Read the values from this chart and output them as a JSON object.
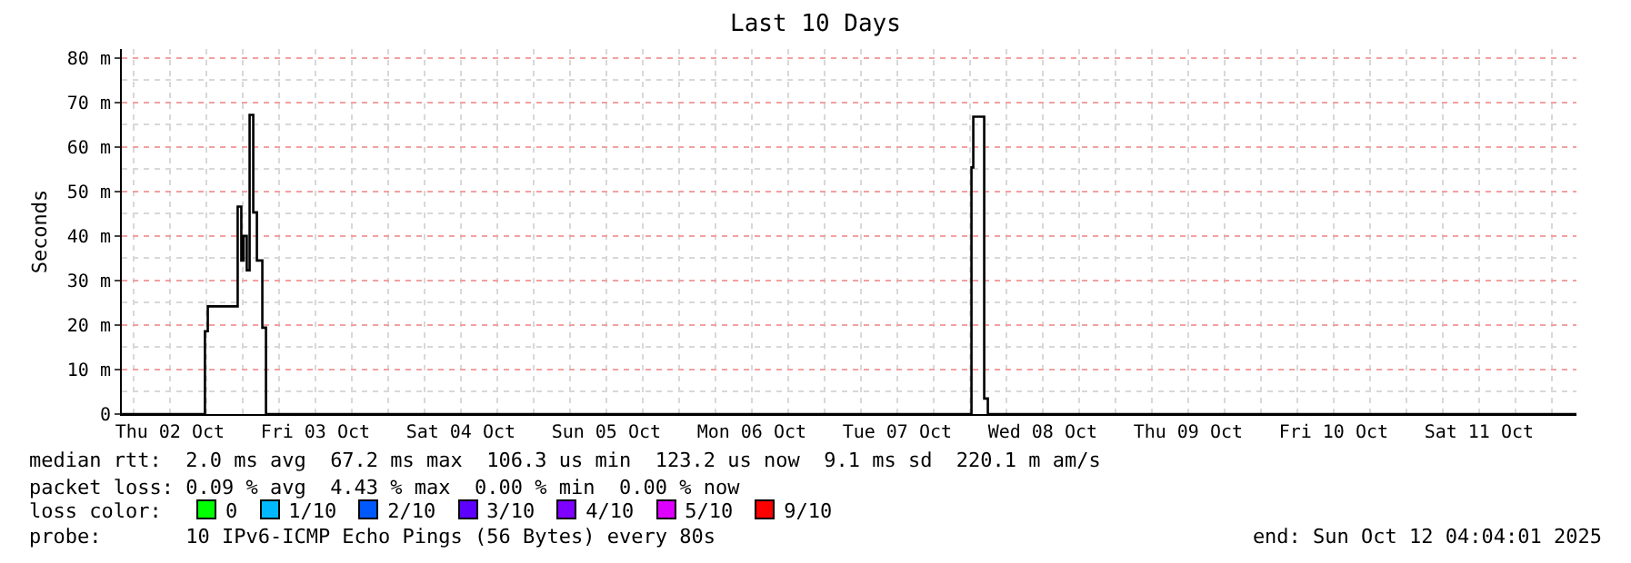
{
  "chart_data": {
    "type": "step",
    "title": "Last 10 Days",
    "ylabel": "Seconds",
    "x": [
      "2025-10-02T04:04",
      "2025-10-02T17:47",
      "2025-10-02T18:15",
      "2025-10-02T23:11",
      "2025-10-02T23:47",
      "2025-10-03T00:10",
      "2025-10-03T00:41",
      "2025-10-03T01:09",
      "2025-10-03T01:45",
      "2025-10-03T02:21",
      "2025-10-03T03:15",
      "2025-10-03T03:51",
      "2025-10-08T00:15",
      "2025-10-08T00:33",
      "2025-10-08T02:21",
      "2025-10-08T02:57",
      "2025-10-12T04:04"
    ],
    "series": [
      {
        "color": "#000000",
        "values": [
          0,
          18.6,
          24.2,
          46.6,
          34.5,
          40,
          32.3,
          67.2,
          45.3,
          34.5,
          19.4,
          0,
          55.4,
          66.8,
          3.5,
          0,
          0
        ]
      }
    ],
    "xlim": [
      "2025-10-02T04:04",
      "2025-10-12T04:04"
    ],
    "xticks": [
      {
        "value": "2025-10-02T12:00",
        "label": "Thu 02 Oct"
      },
      {
        "value": "2025-10-03T12:00",
        "label": "Fri 03 Oct"
      },
      {
        "value": "2025-10-04T12:00",
        "label": "Sat 04 Oct"
      },
      {
        "value": "2025-10-05T12:00",
        "label": "Sun 05 Oct"
      },
      {
        "value": "2025-10-06T12:00",
        "label": "Mon 06 Oct"
      },
      {
        "value": "2025-10-07T12:00",
        "label": "Tue 07 Oct"
      },
      {
        "value": "2025-10-08T12:00",
        "label": "Wed 08 Oct"
      },
      {
        "value": "2025-10-09T12:00",
        "label": "Thu 09 Oct"
      },
      {
        "value": "2025-10-10T12:00",
        "label": "Fri 10 Oct"
      },
      {
        "value": "2025-10-11T12:00",
        "label": "Sat 11 Oct"
      }
    ],
    "ylim": [
      0,
      82
    ],
    "yticks": [
      0,
      {
        "value": 10,
        "label": "10 m"
      },
      {
        "value": 20,
        "label": "20 m"
      },
      {
        "value": 30,
        "label": "30 m"
      },
      {
        "value": 40,
        "label": "40 m"
      },
      {
        "value": 50,
        "label": "50 m"
      },
      {
        "value": 60,
        "label": "60 m"
      },
      {
        "value": 70,
        "label": "70 m"
      },
      {
        "value": 80,
        "label": "80 m"
      }
    ],
    "grid": true,
    "marker": "none",
    "line_style": "solid",
    "annotations": [
      "median rtt:  2.0 ms avg  67.2 ms max  106.3 us min  123.2 us now  9.1 ms sd  220.1 m am/s",
      "packet loss: 0.09 % avg  4.43 % max  0.00 % min  0.00 % now",
      "loss color:",
      "0",
      "1/10",
      "2/10",
      "3/10",
      "4/10",
      "5/10",
      "9/10",
      "probe:       10 IPv6-ICMP Echo Pings (56 Bytes) every 80s",
      "end: Sun Oct 12 04:04:01 2025"
    ]
  }
}
